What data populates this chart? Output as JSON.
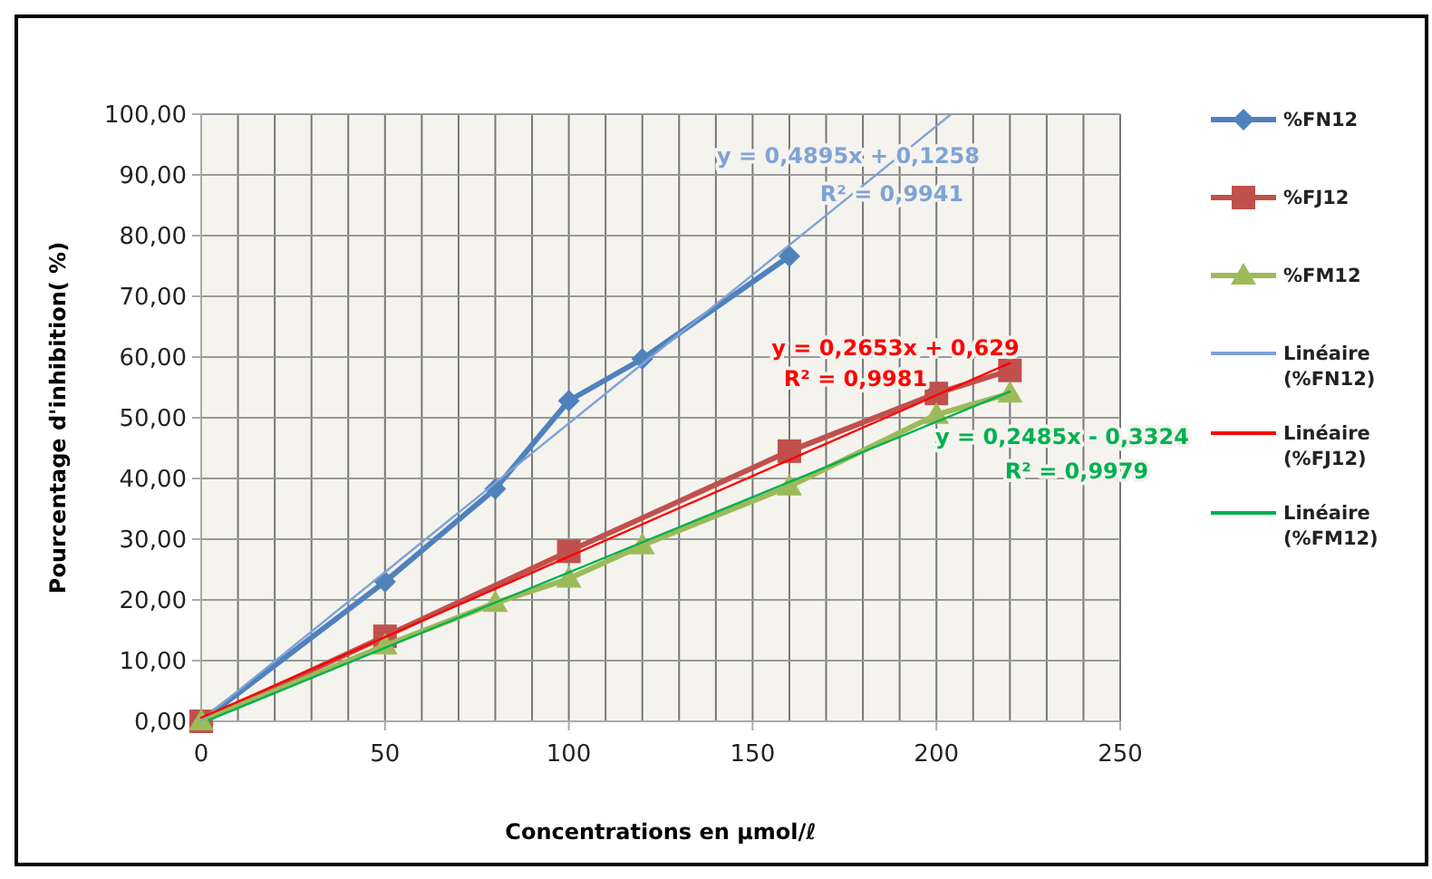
{
  "chart_data": {
    "type": "line",
    "xlabel": "Concentrations en µmol/ℓ",
    "ylabel": "Pourcentage d'inhibition( %)",
    "xlim": [
      0,
      250
    ],
    "ylim": [
      0,
      100
    ],
    "xticks": [
      0,
      {
        "value": 10,
        "label": null
      },
      {
        "value": 20,
        "label": null
      },
      {
        "value": 30,
        "label": null
      },
      {
        "value": 40,
        "label": null
      },
      50,
      {
        "value": 60,
        "label": null
      },
      {
        "value": 70,
        "label": null
      },
      {
        "value": 80,
        "label": null
      },
      {
        "value": 90,
        "label": null
      },
      100,
      {
        "value": 110,
        "label": null
      },
      {
        "value": 120,
        "label": null
      },
      {
        "value": 130,
        "label": null
      },
      {
        "value": 140,
        "label": null
      },
      150,
      {
        "value": 160,
        "label": null
      },
      {
        "value": 170,
        "label": null
      },
      {
        "value": 180,
        "label": null
      },
      {
        "value": 190,
        "label": null
      },
      200,
      {
        "value": 210,
        "label": null
      },
      {
        "value": 220,
        "label": null
      },
      {
        "value": 230,
        "label": null
      },
      {
        "value": 240,
        "label": null
      },
      250
    ],
    "yticks": [
      {
        "value": 0,
        "label": "0,00"
      },
      {
        "value": 10,
        "label": "10,00"
      },
      {
        "value": 20,
        "label": "20,00"
      },
      {
        "value": 30,
        "label": "30,00"
      },
      {
        "value": 40,
        "label": "40,00"
      },
      {
        "value": 50,
        "label": "50,00"
      },
      {
        "value": 60,
        "label": "60,00"
      },
      {
        "value": 70,
        "label": "70,00"
      },
      {
        "value": 80,
        "label": "80,00"
      },
      {
        "value": 90,
        "label": "90,00"
      },
      {
        "value": 100,
        "label": "100,00"
      }
    ],
    "grid": true,
    "legend": "right",
    "series": [
      {
        "name": "%FN12",
        "color": "#4f81bd",
        "marker": "diamond",
        "x": [
          0,
          50,
          80,
          100,
          120,
          160
        ],
        "values": [
          0,
          23,
          38.3,
          52.8,
          59.7,
          76.6
        ]
      },
      {
        "name": "%FJ12",
        "color": "#c0504d",
        "marker": "square",
        "x": [
          0,
          50,
          100,
          160,
          200,
          220
        ],
        "values": [
          0,
          14,
          28,
          44.5,
          54,
          57.8
        ]
      },
      {
        "name": "%FM12",
        "color": "#9bbb59",
        "marker": "triangle",
        "x": [
          0,
          50,
          80,
          100,
          120,
          160,
          200,
          220
        ],
        "values": [
          0,
          12.5,
          19.5,
          23.5,
          29,
          38.7,
          50.5,
          54
        ]
      },
      {
        "name": "Linéaire (%FN12)",
        "color": "#7ea3d6",
        "marker": "none",
        "x": [
          0,
          204
        ],
        "values": [
          0.1,
          100
        ]
      },
      {
        "name": "Linéaire (%FJ12)",
        "color": "#ff0000",
        "marker": "none",
        "x": [
          0,
          220
        ],
        "values": [
          0.6,
          59
        ]
      },
      {
        "name": "Linéaire (%FM12)",
        "color": "#00b050",
        "marker": "none",
        "x": [
          2,
          220
        ],
        "values": [
          0.2,
          54.3
        ]
      }
    ],
    "annotations": [
      "y = 0,4895x + 0,1258",
      "R² = 0,9941",
      "y = 0,2653x + 0,629",
      "R² = 0,9981",
      "y = 0,2485x - 0,3324",
      "R² = 0,9979"
    ]
  }
}
